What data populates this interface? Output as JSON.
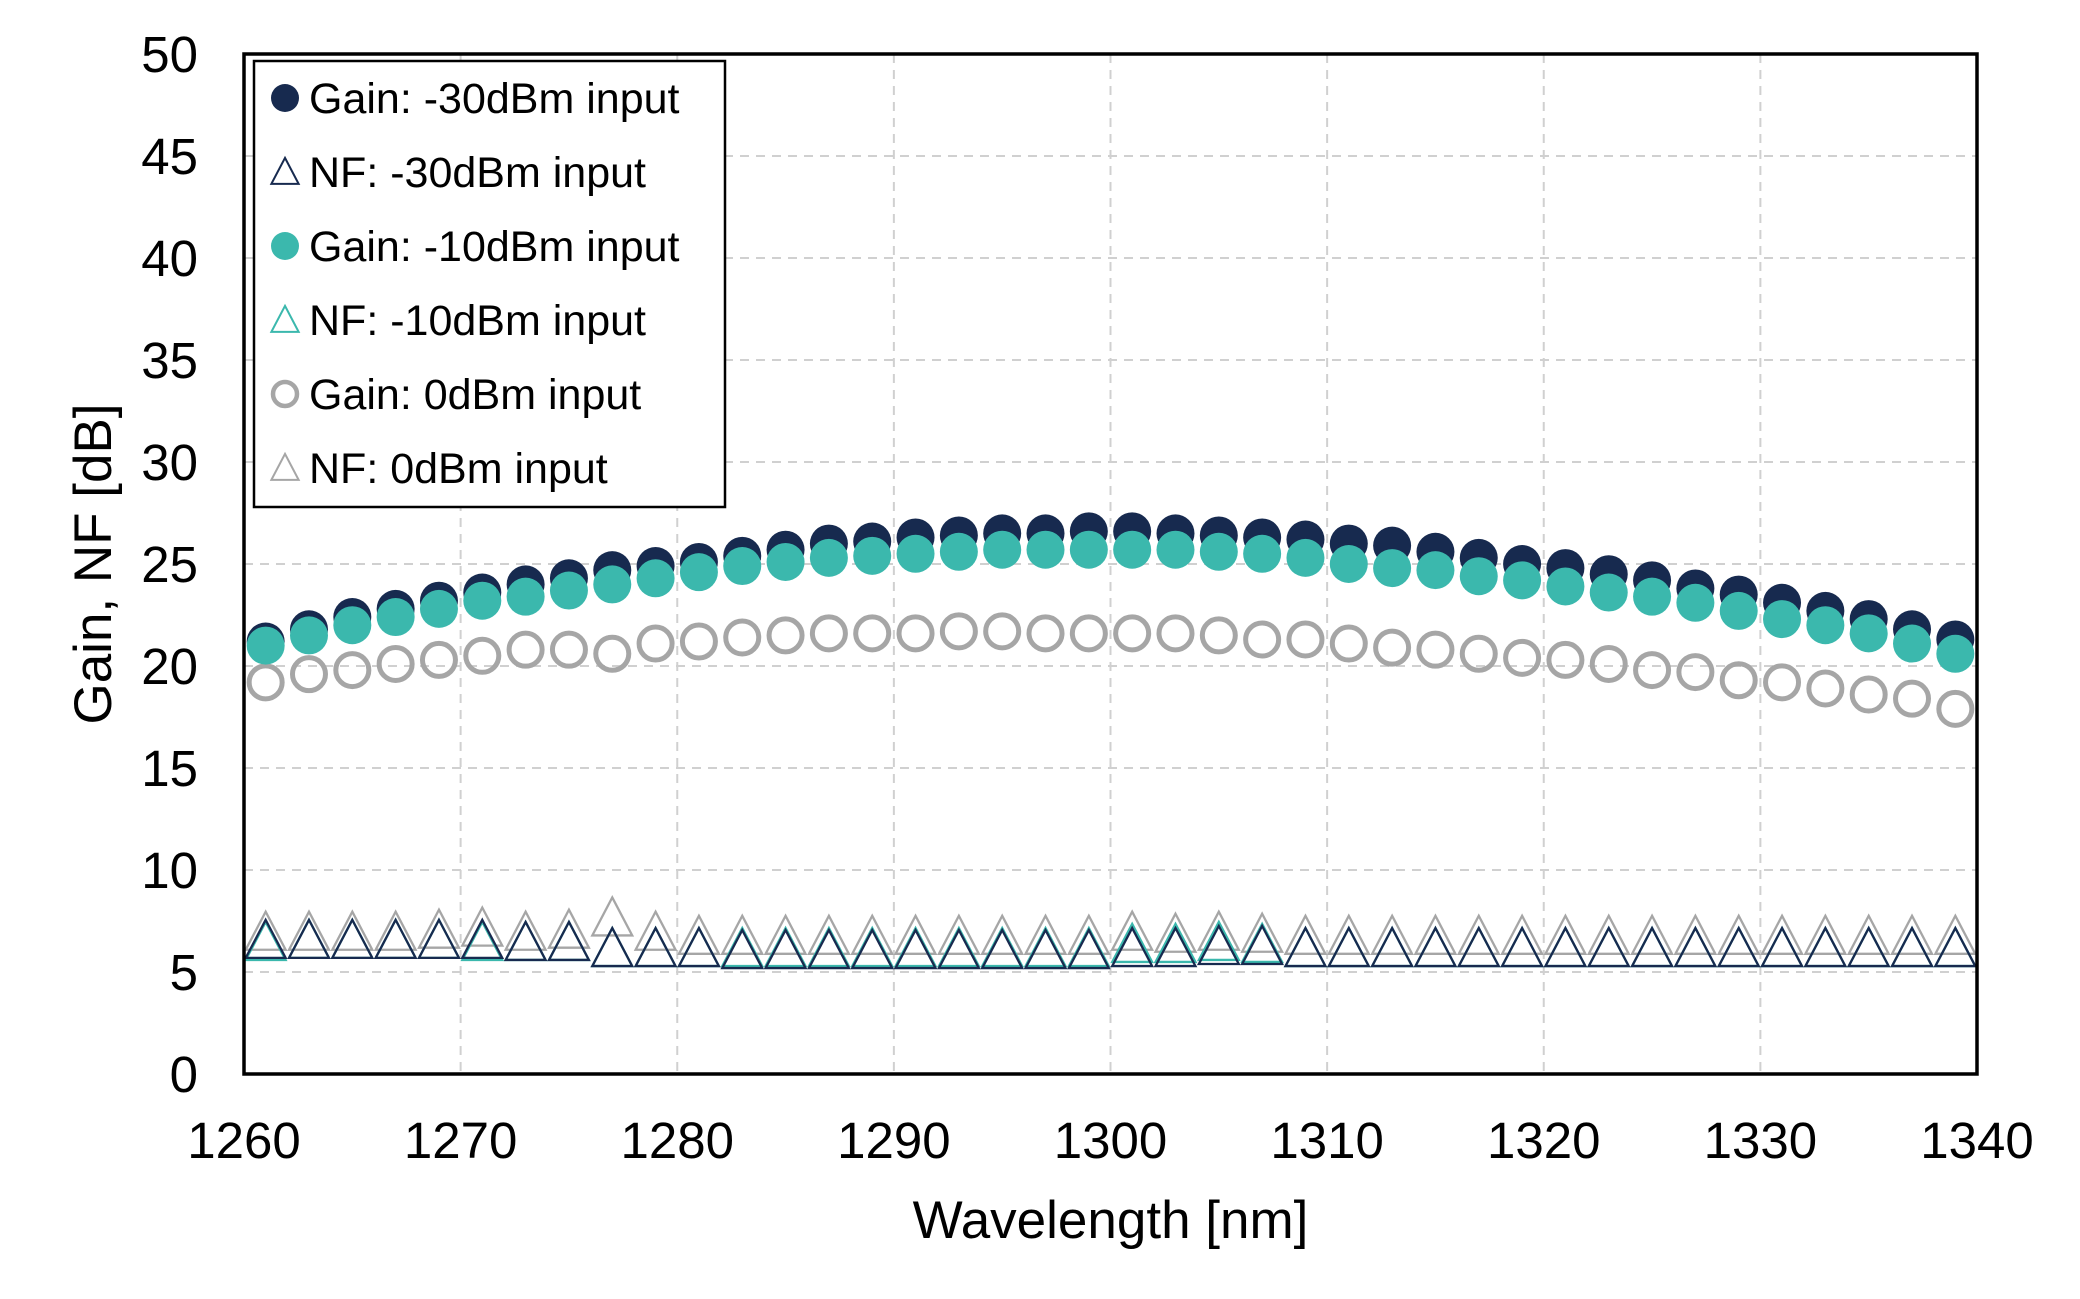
{
  "chart_data": {
    "type": "scatter",
    "xlabel": "Wavelength [nm]",
    "ylabel": "Gain, NF [dB]",
    "xlim": [
      1260,
      1340
    ],
    "ylim": [
      0,
      50
    ],
    "xticks": [
      "1260",
      "1270",
      "1280",
      "1290",
      "1300",
      "1310",
      "1320",
      "1330",
      "1340"
    ],
    "yticks": [
      "0",
      "5",
      "10",
      "15",
      "20",
      "25",
      "30",
      "35",
      "40",
      "45",
      "50"
    ],
    "grid": true,
    "legend_position": "top-left",
    "x": [
      1261,
      1263,
      1265,
      1267,
      1269,
      1271,
      1273,
      1275,
      1277,
      1279,
      1281,
      1283,
      1285,
      1287,
      1289,
      1291,
      1293,
      1295,
      1297,
      1299,
      1301,
      1303,
      1305,
      1307,
      1309,
      1311,
      1313,
      1315,
      1317,
      1319,
      1321,
      1323,
      1325,
      1327,
      1329,
      1331,
      1333,
      1335,
      1337,
      1339
    ],
    "series": [
      {
        "name": "Gain: -30dBm input",
        "marker": "filled-circle",
        "color": "#172a4f",
        "values": [
          21.2,
          21.8,
          22.4,
          22.8,
          23.2,
          23.6,
          24.0,
          24.3,
          24.7,
          24.9,
          25.1,
          25.4,
          25.7,
          26.0,
          26.1,
          26.3,
          26.4,
          26.5,
          26.5,
          26.6,
          26.6,
          26.5,
          26.4,
          26.3,
          26.2,
          26.0,
          25.9,
          25.6,
          25.3,
          25.0,
          24.8,
          24.5,
          24.2,
          23.8,
          23.5,
          23.1,
          22.7,
          22.3,
          21.8,
          21.3
        ]
      },
      {
        "name": "NF: -30dBm input",
        "marker": "open-triangle",
        "color": "#172a4f",
        "values": [
          6.4,
          6.4,
          6.4,
          6.4,
          6.4,
          6.4,
          6.3,
          6.3,
          6.0,
          6.0,
          6.0,
          5.9,
          5.9,
          5.9,
          5.9,
          5.9,
          5.9,
          5.9,
          5.9,
          5.9,
          6.0,
          6.0,
          6.1,
          6.1,
          6.0,
          6.0,
          6.0,
          6.0,
          6.0,
          6.0,
          6.0,
          6.0,
          6.0,
          6.0,
          6.0,
          6.0,
          6.0,
          6.0,
          6.0,
          6.0
        ]
      },
      {
        "name": "Gain: -10dBm input",
        "marker": "filled-circle",
        "color": "#3bb8ad",
        "values": [
          21.0,
          21.5,
          22.0,
          22.4,
          22.8,
          23.2,
          23.4,
          23.7,
          24.0,
          24.3,
          24.6,
          24.9,
          25.1,
          25.3,
          25.4,
          25.5,
          25.6,
          25.7,
          25.7,
          25.7,
          25.7,
          25.7,
          25.6,
          25.5,
          25.3,
          25.0,
          24.8,
          24.7,
          24.4,
          24.2,
          23.9,
          23.6,
          23.4,
          23.1,
          22.7,
          22.3,
          22.0,
          21.6,
          21.1,
          20.6
        ]
      },
      {
        "name": "NF: -10dBm input",
        "marker": "open-triangle",
        "color": "#3bb8ad",
        "values": [
          6.3,
          6.4,
          6.4,
          6.4,
          6.4,
          6.3,
          6.3,
          6.3,
          6.0,
          6.0,
          6.0,
          6.0,
          6.0,
          6.0,
          6.0,
          6.0,
          6.0,
          6.0,
          6.0,
          6.0,
          6.2,
          6.2,
          6.3,
          6.2,
          6.0,
          6.0,
          6.0,
          6.0,
          6.0,
          6.0,
          6.0,
          6.0,
          6.0,
          6.0,
          6.0,
          6.0,
          6.0,
          6.0,
          6.0,
          6.0
        ]
      },
      {
        "name": "Gain: 0dBm input",
        "marker": "open-circle",
        "color": "#a6a6a6",
        "values": [
          19.2,
          19.6,
          19.8,
          20.1,
          20.3,
          20.5,
          20.8,
          20.8,
          20.6,
          21.1,
          21.2,
          21.4,
          21.5,
          21.6,
          21.6,
          21.6,
          21.7,
          21.7,
          21.6,
          21.6,
          21.6,
          21.6,
          21.5,
          21.3,
          21.3,
          21.1,
          20.9,
          20.8,
          20.6,
          20.4,
          20.3,
          20.1,
          19.8,
          19.7,
          19.3,
          19.2,
          18.9,
          18.6,
          18.4,
          17.9
        ]
      },
      {
        "name": "NF: 0dBm input",
        "marker": "open-triangle",
        "color": "#a6a6a6",
        "values": [
          6.8,
          6.8,
          6.8,
          6.8,
          6.9,
          7.0,
          6.8,
          6.9,
          7.5,
          6.8,
          6.6,
          6.6,
          6.6,
          6.6,
          6.6,
          6.6,
          6.6,
          6.6,
          6.6,
          6.6,
          6.8,
          6.7,
          6.8,
          6.7,
          6.6,
          6.6,
          6.6,
          6.6,
          6.6,
          6.6,
          6.6,
          6.6,
          6.6,
          6.6,
          6.6,
          6.6,
          6.6,
          6.6,
          6.6,
          6.6
        ]
      }
    ]
  }
}
